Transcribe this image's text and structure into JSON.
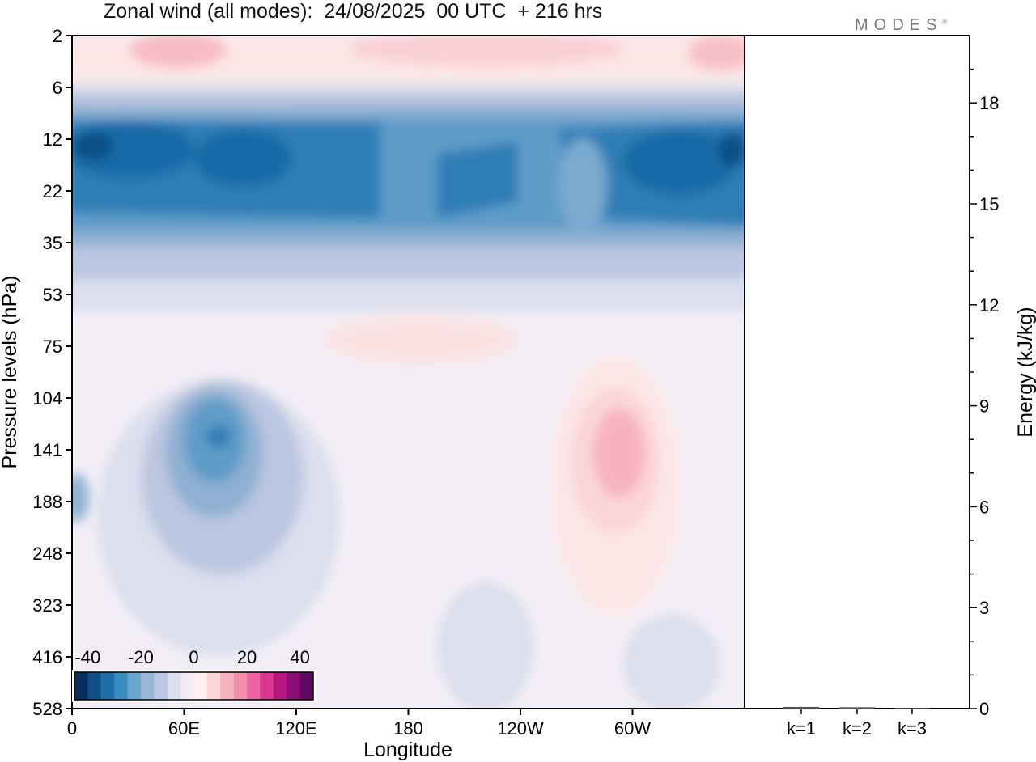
{
  "header": {
    "title": "Zonal wind (all modes):  24/08/2025  00 UTC  + 216 hrs",
    "brand": "MODES",
    "brand_mark": "®"
  },
  "chart_data": [
    {
      "type": "heatmap",
      "title": "Zonal wind (all modes):  24/08/2025  00 UTC  + 216 hrs",
      "xlabel": "Longitude",
      "ylabel": "Pressure levels (hPa)",
      "x_ticks": [
        "0",
        "60E",
        "120E",
        "180",
        "120W",
        "60W"
      ],
      "x_tick_degrees": [
        0,
        60,
        120,
        180,
        240,
        300
      ],
      "xlim": [
        0,
        360
      ],
      "y_ticks": [
        "2",
        "6",
        "12",
        "22",
        "35",
        "53",
        "75",
        "104",
        "141",
        "188",
        "248",
        "323",
        "416",
        "528"
      ],
      "colorbar": {
        "tick_labels": [
          "-40",
          "-20",
          "0",
          "20",
          "40"
        ],
        "range": [
          -45,
          45
        ],
        "levels": [
          -45,
          -40,
          -35,
          -30,
          -25,
          -20,
          -15,
          -10,
          -5,
          0,
          5,
          10,
          15,
          20,
          25,
          30,
          35,
          40,
          45
        ],
        "colors": [
          "#053061",
          "#0f4f86",
          "#1f6ea8",
          "#3a8cc0",
          "#66a5cc",
          "#9ab5d6",
          "#bcc6e0",
          "#dcdfee",
          "#f1ecf4",
          "#fff1f1",
          "#fbd5d8",
          "#f7b3bd",
          "#f38fae",
          "#ec63a2",
          "#d8368f",
          "#b5167f",
          "#8a0c76",
          "#5c0a62"
        ]
      },
      "bands": [
        {
          "level": "2-6 hPa",
          "wind_ms": 5,
          "feature": "weak easterly-free westerlies (pink) near stratopause"
        },
        {
          "level": "8-35 hPa",
          "wind_ms": -30,
          "feature": "strong easterly jet band, max near 12 hPa about -40 m/s"
        },
        {
          "level": "35-53 hPa",
          "wind_ms": -12,
          "feature": "weakening easterlies"
        },
        {
          "level": "53-104 hPa",
          "wind_ms": -2,
          "feature": "near-zero winds"
        },
        {
          "level": "104-248 hPa at 60E-90E",
          "wind_ms": -25,
          "feature": "easterly core about -30 m/s near 141 hPa"
        },
        {
          "level": "104-248 hPa at 75W",
          "wind_ms": 12,
          "feature": "westerly core about +15 m/s near 141 hPa"
        }
      ]
    },
    {
      "type": "bar",
      "ylabel": "Energy (kJ/kg)",
      "categories": [
        "k=1",
        "k=2",
        "k=3"
      ],
      "values": [
        0.05,
        0.04,
        0.02
      ],
      "ylim": [
        0,
        20
      ],
      "y_ticks": [
        "0",
        "3",
        "6",
        "9",
        "12",
        "15",
        "18"
      ],
      "y_tick_values": [
        0,
        3,
        6,
        9,
        12,
        15,
        18
      ]
    }
  ]
}
